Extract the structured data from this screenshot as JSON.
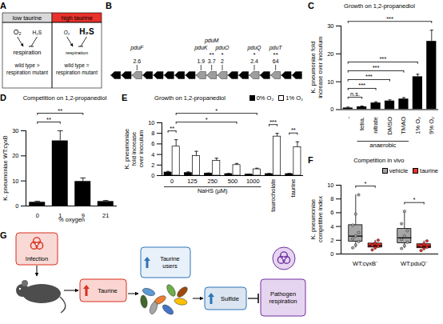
{
  "chart_data": [
    {
      "panel": "C",
      "type": "bar",
      "title": "Growth on 1,2-propanediol",
      "y_label": "K. pneumoniae fold increase over inoculum",
      "categories": [
        "-",
        "tetra.",
        "nitrate",
        "DMSO",
        "TMAO",
        "1% O₂",
        "9% O₂"
      ],
      "values": [
        0.6,
        1.0,
        2.4,
        3.1,
        3.8,
        11.8,
        24.5
      ],
      "errors": [
        0.3,
        0.3,
        0.4,
        0.4,
        0.5,
        0.9,
        4.0
      ],
      "color": "#000000",
      "ylim": [
        0,
        30
      ],
      "yticks": [
        0,
        10,
        20,
        30
      ],
      "groups": [
        {
          "label": "anaerobic",
          "categories": [
            "tetra.",
            "nitrate",
            "DMSO",
            "TMAO"
          ]
        }
      ],
      "comparisons": [
        {
          "from": "-",
          "to": "tetra.",
          "label": "n.s."
        },
        {
          "from": "-",
          "to": "nitrate",
          "label": "***"
        },
        {
          "from": "-",
          "to": "DMSO",
          "label": "***"
        },
        {
          "from": "-",
          "to": "TMAO",
          "label": "***"
        },
        {
          "from": "-",
          "to": "1% O₂",
          "label": "***"
        },
        {
          "from": "-",
          "to": "9% O₂",
          "label": "***"
        }
      ]
    },
    {
      "panel": "D",
      "type": "bar",
      "title": "Competition on 1,2-propanediol",
      "y_label": "K. pneumoniae WT:cyxB",
      "x_label": "% oxygen",
      "categories": [
        "0",
        "1",
        "9",
        "21"
      ],
      "values": [
        1.5,
        26,
        9.8,
        1.8
      ],
      "errors": [
        0.4,
        4.0,
        1.4,
        0.4
      ],
      "color": "#000000",
      "ylim": [
        0,
        30
      ],
      "yticks": [
        0,
        10,
        20,
        30
      ],
      "comparisons": [
        {
          "from": "0",
          "to": "1",
          "label": "**"
        },
        {
          "from": "0",
          "to": "9",
          "label": "**"
        }
      ]
    },
    {
      "panel": "E",
      "type": "bar",
      "title": "Growth on 1,2-propanediol",
      "y_label": "K. pneumoniae fold increase over inoculum",
      "categories": [
        "0",
        "125",
        "250",
        "500",
        "1000",
        "taurocholate",
        "taurine"
      ],
      "group_label": {
        "text": "NaHS (µM)",
        "categories": [
          "0",
          "125",
          "250",
          "500",
          "1000"
        ]
      },
      "series": [
        {
          "name": "0% O₂",
          "color": "#000000",
          "values": [
            0.6,
            0.5,
            0.4,
            0.3,
            0.2,
            0.3,
            0.3
          ],
          "errors": [
            0.2,
            0.2,
            0.1,
            0.1,
            0.1,
            0.1,
            0.1
          ]
        },
        {
          "name": "1% O₂",
          "color": "#ffffff",
          "values": [
            5.5,
            3.7,
            2.8,
            2.0,
            1.2,
            7.4,
            5.4
          ],
          "errors": [
            1.3,
            0.9,
            0.5,
            0.3,
            0.2,
            0.6,
            1.0
          ]
        }
      ],
      "ylim": [
        0,
        10
      ],
      "yticks": [
        0,
        2,
        4,
        6,
        8,
        10
      ],
      "legend": "top",
      "comparisons": [
        {
          "from": [
            "0",
            "0% O₂"
          ],
          "to": [
            "0",
            "1% O₂"
          ],
          "label": "**"
        },
        {
          "from": [
            "0",
            "1% O₂"
          ],
          "to": [
            "500",
            "1% O₂"
          ],
          "label": "*"
        },
        {
          "from": [
            "0",
            "1% O₂"
          ],
          "to": [
            "1000",
            "1% O₂"
          ],
          "label": "*"
        },
        {
          "from": [
            "taurocholate",
            "0% O₂"
          ],
          "to": [
            "taurocholate",
            "1% O₂"
          ],
          "label": "***"
        },
        {
          "from": [
            "taurine",
            "0% O₂"
          ],
          "to": [
            "taurine",
            "1% O₂"
          ],
          "label": "**"
        }
      ]
    },
    {
      "panel": "F",
      "type": "box",
      "title": "Competition in vivo",
      "y_label": "K. pneumoniae competitive index",
      "categories": [
        "WT:cyxB⁻",
        "WT:pduQ⁻"
      ],
      "series": [
        {
          "name": "vehicle",
          "color": "#a6a6a6",
          "values": [
            [
              0.9,
              1.3,
              1.8,
              2.2,
              2.6,
              3.1,
              4.2,
              5.8,
              8.6
            ],
            [
              0.8,
              1.2,
              1.7,
              2.1,
              2.6,
              3.4,
              4.4,
              6.2
            ]
          ]
        },
        {
          "name": "taurine",
          "color": "#e8322b",
          "values": [
            [
              0.6,
              0.9,
              1.1,
              1.3,
              1.6,
              2.0
            ],
            [
              0.5,
              0.8,
              1.0,
              1.2,
              1.5,
              1.9
            ]
          ]
        }
      ],
      "ylim": [
        0,
        10
      ],
      "yticks": [
        0,
        2,
        4,
        6,
        8,
        10
      ],
      "legend": "top",
      "comparisons": [
        {
          "from": [
            "WT:cyxB⁻",
            "vehicle"
          ],
          "to": [
            "WT:cyxB⁻",
            "taurine"
          ],
          "label": "*"
        },
        {
          "from": [
            "WT:pduQ⁻",
            "vehicle"
          ],
          "to": [
            "WT:pduQ⁻",
            "taurine"
          ],
          "label": "*"
        }
      ]
    }
  ],
  "diagrams": {
    "A": {
      "letter": "A",
      "columns": [
        {
          "header": "low taurine",
          "header_color": "#d9d9d9",
          "inputs": [
            "O₂",
            "H₂S"
          ],
          "emphasis": "O₂",
          "process": "respiration",
          "outcome": [
            "wild type >",
            "respiration mutant"
          ]
        },
        {
          "header": "high taurine",
          "header_color": "#e8322b",
          "inputs": [
            "O₂",
            "H₂S"
          ],
          "emphasis": "H₂S",
          "process": "respiration",
          "outcome": [
            "wild type =",
            "respiration mutant"
          ]
        }
      ]
    },
    "B": {
      "letter": "B",
      "genes": [
        null,
        null,
        {
          "name": "pduF",
          "fold": 2.6
        },
        null,
        null,
        null,
        null,
        null,
        {
          "name": "pduK",
          "fold": 1.9
        },
        {
          "name": "pduM",
          "fold": 3.7,
          "significance": "**"
        },
        {
          "name": "pduO",
          "fold": 2.0,
          "significance": "*"
        },
        null,
        null,
        {
          "name": "pduQ",
          "fold": 2.4,
          "significance": "*"
        },
        null,
        {
          "name": "pduT",
          "fold": 64,
          "significance": "**"
        },
        null,
        null
      ]
    },
    "G": {
      "letter": "G",
      "nodes": [
        "Infection",
        "Taurine",
        "Taurine users",
        "Sulfide",
        "Pathogen respiration"
      ]
    }
  }
}
